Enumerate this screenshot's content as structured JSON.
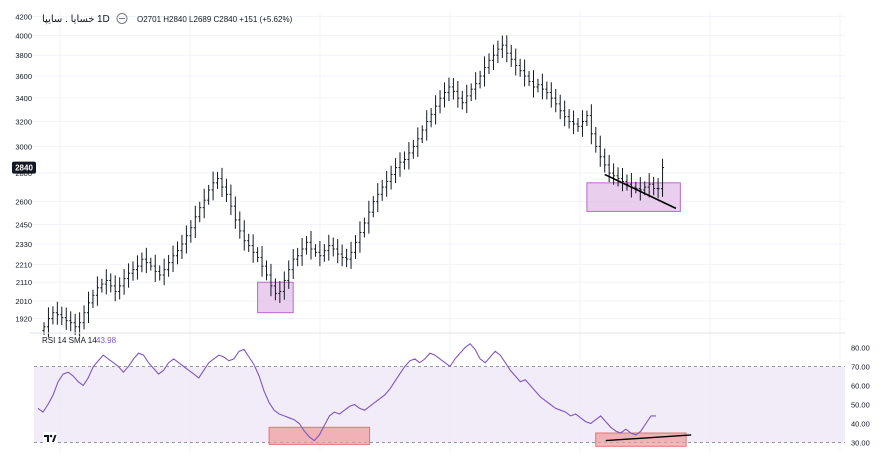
{
  "header": {
    "symbol": "خسایا . سایپا",
    "timeframe": "1D",
    "ohlc": "O2701  H2840  L2689  C2840  +151 (+5.62%)"
  },
  "price_panel": {
    "last_price_label": "2840"
  },
  "rsi_panel": {
    "label": "RSI 14 SMA 14",
    "value": "43.98"
  },
  "colors": {
    "bar": "#131722",
    "rsi_line": "#7e57c2",
    "rsi_band": "#ede7f6",
    "highlight_purple": "#e1bee7",
    "highlight_red": "#ef9a9a",
    "grid": "#f0f3fa",
    "axis_text": "#131722",
    "price_tag": "#131722"
  },
  "chart_data": [
    {
      "type": "ohlc",
      "yscale": "log",
      "ylim": [
        1850,
        4250
      ],
      "y_ticks": [
        4200,
        4000,
        3800,
        3600,
        3400,
        3200,
        3000,
        2800,
        2600,
        2450,
        2330,
        2210,
        2110,
        2010,
        1920
      ],
      "close": [
        1880,
        1920,
        1950,
        1940,
        1925,
        1910,
        1900,
        1880,
        1900,
        1950,
        2000,
        2040,
        2080,
        2100,
        2120,
        2090,
        2060,
        2090,
        2130,
        2160,
        2180,
        2200,
        2240,
        2220,
        2200,
        2170,
        2150,
        2180,
        2220,
        2260,
        2290,
        2330,
        2380,
        2430,
        2500,
        2560,
        2610,
        2680,
        2730,
        2760,
        2700,
        2650,
        2570,
        2480,
        2410,
        2350,
        2320,
        2280,
        2250,
        2200,
        2150,
        2090,
        2050,
        2060,
        2120,
        2180,
        2240,
        2260,
        2300,
        2340,
        2300,
        2280,
        2260,
        2290,
        2320,
        2300,
        2270,
        2250,
        2240,
        2280,
        2340,
        2400,
        2460,
        2530,
        2600,
        2650,
        2700,
        2740,
        2790,
        2840,
        2880,
        2900,
        2950,
        3000,
        3060,
        3130,
        3200,
        3260,
        3330,
        3400,
        3450,
        3500,
        3460,
        3400,
        3360,
        3420,
        3480,
        3530,
        3600,
        3680,
        3750,
        3800,
        3860,
        3900,
        3820,
        3760,
        3700,
        3650,
        3600,
        3550,
        3500,
        3520,
        3480,
        3450,
        3400,
        3350,
        3290,
        3240,
        3200,
        3180,
        3160,
        3200,
        3250,
        3100,
        3000,
        2920,
        2860,
        2800,
        2780,
        2760,
        2740,
        2720,
        2700,
        2690,
        2680,
        2700,
        2720,
        2690,
        2689,
        2840
      ],
      "annotations": [
        {
          "kind": "box",
          "x_range": [
            48,
            56
          ],
          "y_range": [
            1950,
            2110
          ]
        },
        {
          "kind": "box",
          "x_range": [
            122,
            143
          ],
          "y_range": [
            2535,
            2730
          ]
        },
        {
          "kind": "trendline",
          "from": [
            126,
            2790
          ],
          "to": [
            142,
            2555
          ]
        }
      ]
    },
    {
      "type": "line",
      "title": "RSI 14 SMA 14",
      "ylim": [
        25,
        85
      ],
      "y_ticks": [
        80.0,
        70.0,
        60.0,
        50.0,
        40.0,
        30.0
      ],
      "band": [
        30,
        70
      ],
      "values": [
        48,
        46,
        50,
        55,
        62,
        66,
        67,
        65,
        62,
        60,
        64,
        70,
        73,
        76,
        74,
        72,
        70,
        67,
        70,
        74,
        77,
        76,
        72,
        69,
        66,
        68,
        72,
        74,
        72,
        70,
        68,
        66,
        64,
        68,
        72,
        74,
        76,
        75,
        73,
        74,
        78,
        79,
        75,
        71,
        65,
        57,
        51,
        47,
        45,
        44,
        43,
        42,
        40,
        36,
        33,
        31,
        34,
        39,
        44,
        46,
        45,
        47,
        49,
        50,
        48,
        47,
        49,
        51,
        53,
        55,
        58,
        62,
        66,
        70,
        73,
        74,
        72,
        74,
        77,
        76,
        74,
        72,
        70,
        74,
        77,
        80,
        82,
        79,
        74,
        72,
        75,
        78,
        76,
        72,
        68,
        65,
        62,
        63,
        60,
        57,
        54,
        52,
        50,
        48,
        47,
        46,
        44,
        45,
        43,
        41,
        40,
        42,
        44,
        41,
        38,
        36,
        35,
        37,
        35,
        34,
        36,
        40,
        44,
        43.98
      ],
      "annotations": [
        {
          "kind": "box",
          "x_range": [
            46,
            66
          ],
          "y_range": [
            29,
            38
          ]
        },
        {
          "kind": "box",
          "x_range": [
            111,
            129
          ],
          "y_range": [
            28,
            35
          ]
        },
        {
          "kind": "trendline",
          "from": [
            113,
            31
          ],
          "to": [
            130,
            34
          ]
        }
      ]
    }
  ]
}
